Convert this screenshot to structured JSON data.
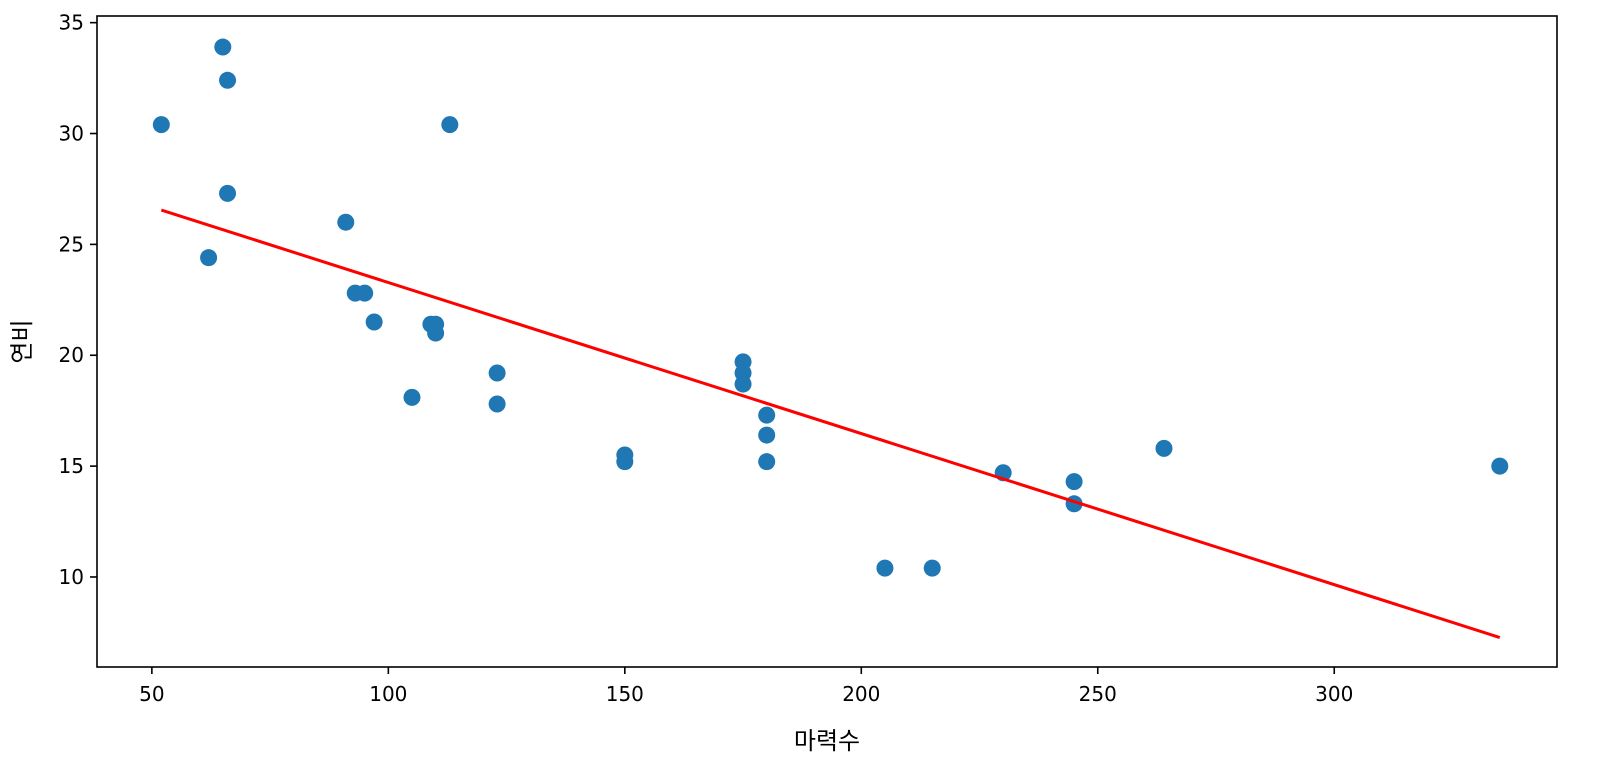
{
  "chart_data": {
    "type": "scatter",
    "title": "",
    "xlabel": "마력수",
    "ylabel": "연비",
    "xlim": [
      38.4,
      347.1
    ],
    "ylim": [
      5.94,
      35.3
    ],
    "x_ticks": [
      50,
      100,
      150,
      200,
      250,
      300
    ],
    "y_ticks": [
      10,
      15,
      20,
      25,
      30,
      35
    ],
    "x_tick_labels": [
      "50",
      "100",
      "150",
      "200",
      "250",
      "300"
    ],
    "y_tick_labels": [
      "10",
      "15",
      "20",
      "25",
      "30",
      "35"
    ],
    "grid": false,
    "series": [
      {
        "type": "scatter",
        "color": "#1f77b4",
        "points": [
          {
            "x": 52,
            "y": 30.4
          },
          {
            "x": 62,
            "y": 24.4
          },
          {
            "x": 65,
            "y": 33.9
          },
          {
            "x": 66,
            "y": 32.4
          },
          {
            "x": 66,
            "y": 27.3
          },
          {
            "x": 91,
            "y": 26.0
          },
          {
            "x": 93,
            "y": 22.8
          },
          {
            "x": 95,
            "y": 22.8
          },
          {
            "x": 97,
            "y": 21.5
          },
          {
            "x": 105,
            "y": 18.1
          },
          {
            "x": 109,
            "y": 21.4
          },
          {
            "x": 110,
            "y": 21.4
          },
          {
            "x": 110,
            "y": 21.0
          },
          {
            "x": 113,
            "y": 30.4
          },
          {
            "x": 123,
            "y": 19.2
          },
          {
            "x": 123,
            "y": 17.8
          },
          {
            "x": 150,
            "y": 15.5
          },
          {
            "x": 150,
            "y": 15.2
          },
          {
            "x": 175,
            "y": 19.7
          },
          {
            "x": 175,
            "y": 19.2
          },
          {
            "x": 175,
            "y": 18.7
          },
          {
            "x": 180,
            "y": 17.3
          },
          {
            "x": 180,
            "y": 16.4
          },
          {
            "x": 180,
            "y": 15.2
          },
          {
            "x": 205,
            "y": 10.4
          },
          {
            "x": 215,
            "y": 10.4
          },
          {
            "x": 230,
            "y": 14.7
          },
          {
            "x": 245,
            "y": 14.3
          },
          {
            "x": 245,
            "y": 13.3
          },
          {
            "x": 264,
            "y": 15.8
          },
          {
            "x": 335,
            "y": 15.0
          }
        ]
      },
      {
        "type": "line",
        "color": "#ff0000",
        "points": [
          {
            "x": 52,
            "y": 26.55
          },
          {
            "x": 335,
            "y": 7.27
          }
        ]
      }
    ]
  }
}
